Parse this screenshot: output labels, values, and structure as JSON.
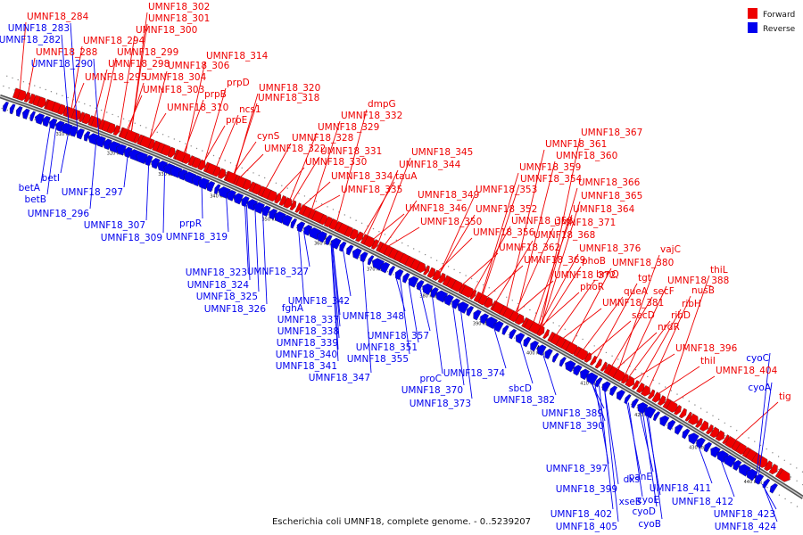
{
  "caption": "Escherichia coli UMNF18, complete genome. - 0..5239207",
  "legend": [
    {
      "label": "Forward",
      "color": "#ee0000"
    },
    {
      "label": "Reverse",
      "color": "#0000ee"
    }
  ],
  "colors": {
    "forward": "#ee0000",
    "reverse": "#0000ee",
    "backbone": "#777777"
  },
  "ticks": [
    "310 kbp",
    "320 kbp",
    "330 kbp",
    "340 kbp",
    "350 kbp",
    "360 kbp",
    "370 kbp",
    "380 kbp",
    "390 kbp",
    "400 kbp",
    "410 kbp",
    "420 kbp",
    "430 kbp",
    "440 kbp"
  ],
  "forward_labels": [
    "UMNF18_284",
    "UMNF18_302",
    "UMNF18_301",
    "UMNF18_300",
    "UMNF18_294",
    "UMNF18_299",
    "UMNF18_288",
    "UMNF18_298",
    "UMNF18_306",
    "UMNF18_295",
    "UMNF18_304",
    "UMNF18_303",
    "UMNF18_314",
    "UMNF18_310",
    "prpD",
    "prpB",
    "UMNF18_320",
    "UMNF18_318",
    "ncs1",
    "prpE",
    "cynS",
    "UMNF18_322",
    "dmpG",
    "UMNF18_332",
    "UMNF18_329",
    "UMNF18_328",
    "UMNF18_331",
    "UMNF18_330",
    "UMNF18_334",
    "UMNF18_335",
    "UMNF18_345",
    "UMNF18_344",
    "tauA",
    "UMNF18_367",
    "UMNF18_361",
    "UMNF18_360",
    "UMNF18_359",
    "UMNF18_354",
    "UMNF18_353",
    "UMNF18_349",
    "UMNF18_346",
    "UMNF18_350",
    "UMNF18_366",
    "UMNF18_365",
    "UMNF18_364",
    "UMNF18_352",
    "UMNF18_358",
    "UMNF18_371",
    "UMNF18_356",
    "UMNF18_368",
    "UMNF18_362",
    "UMNF18_376",
    "UMNF18_369",
    "phoB",
    "vajC",
    "UMNF18_380",
    "UMNF18_372",
    "brnQ",
    "tgt",
    "phoR",
    "queA",
    "thiL",
    "UMNF18_388",
    "secF",
    "nusB",
    "UMNF18_381",
    "ribH",
    "secD",
    "ribD",
    "nrdR",
    "UMNF18_396",
    "thiI",
    "UMNF18_404",
    "tig"
  ],
  "reverse_labels": [
    "UMNF18_283",
    "UMNF18_282",
    "UMNF18_290",
    "betA",
    "betI",
    "betB",
    "UMNF18_297",
    "UMNF18_296",
    "UMNF18_307",
    "prpR",
    "UMNF18_309",
    "UMNF18_319",
    "UMNF18_323",
    "UMNF18_327",
    "UMNF18_324",
    "UMNF18_325",
    "UMNF18_326",
    "fghA",
    "UMNF18_342",
    "UMNF18_337",
    "UMNF18_348",
    "UMNF18_338",
    "UMNF18_339",
    "UMNF18_340",
    "UMNF18_341",
    "UMNF18_357",
    "UMNF18_351",
    "UMNF18_355",
    "UMNF18_347",
    "proC",
    "UMNF18_374",
    "UMNF18_370",
    "sbcD",
    "UMNF18_373",
    "UMNF18_382",
    "UMNF18_389",
    "UMNF18_390",
    "cyoC",
    "cyoA",
    "UMNF18_397",
    "dxs",
    "panE",
    "UMNF18_399",
    "xseB",
    "cyoE",
    "UMNF18_411",
    "UMNF18_402",
    "cyoD",
    "UMNF18_412",
    "UMNF18_405",
    "cyoB",
    "UMNF18_423",
    "UMNF18_424"
  ]
}
